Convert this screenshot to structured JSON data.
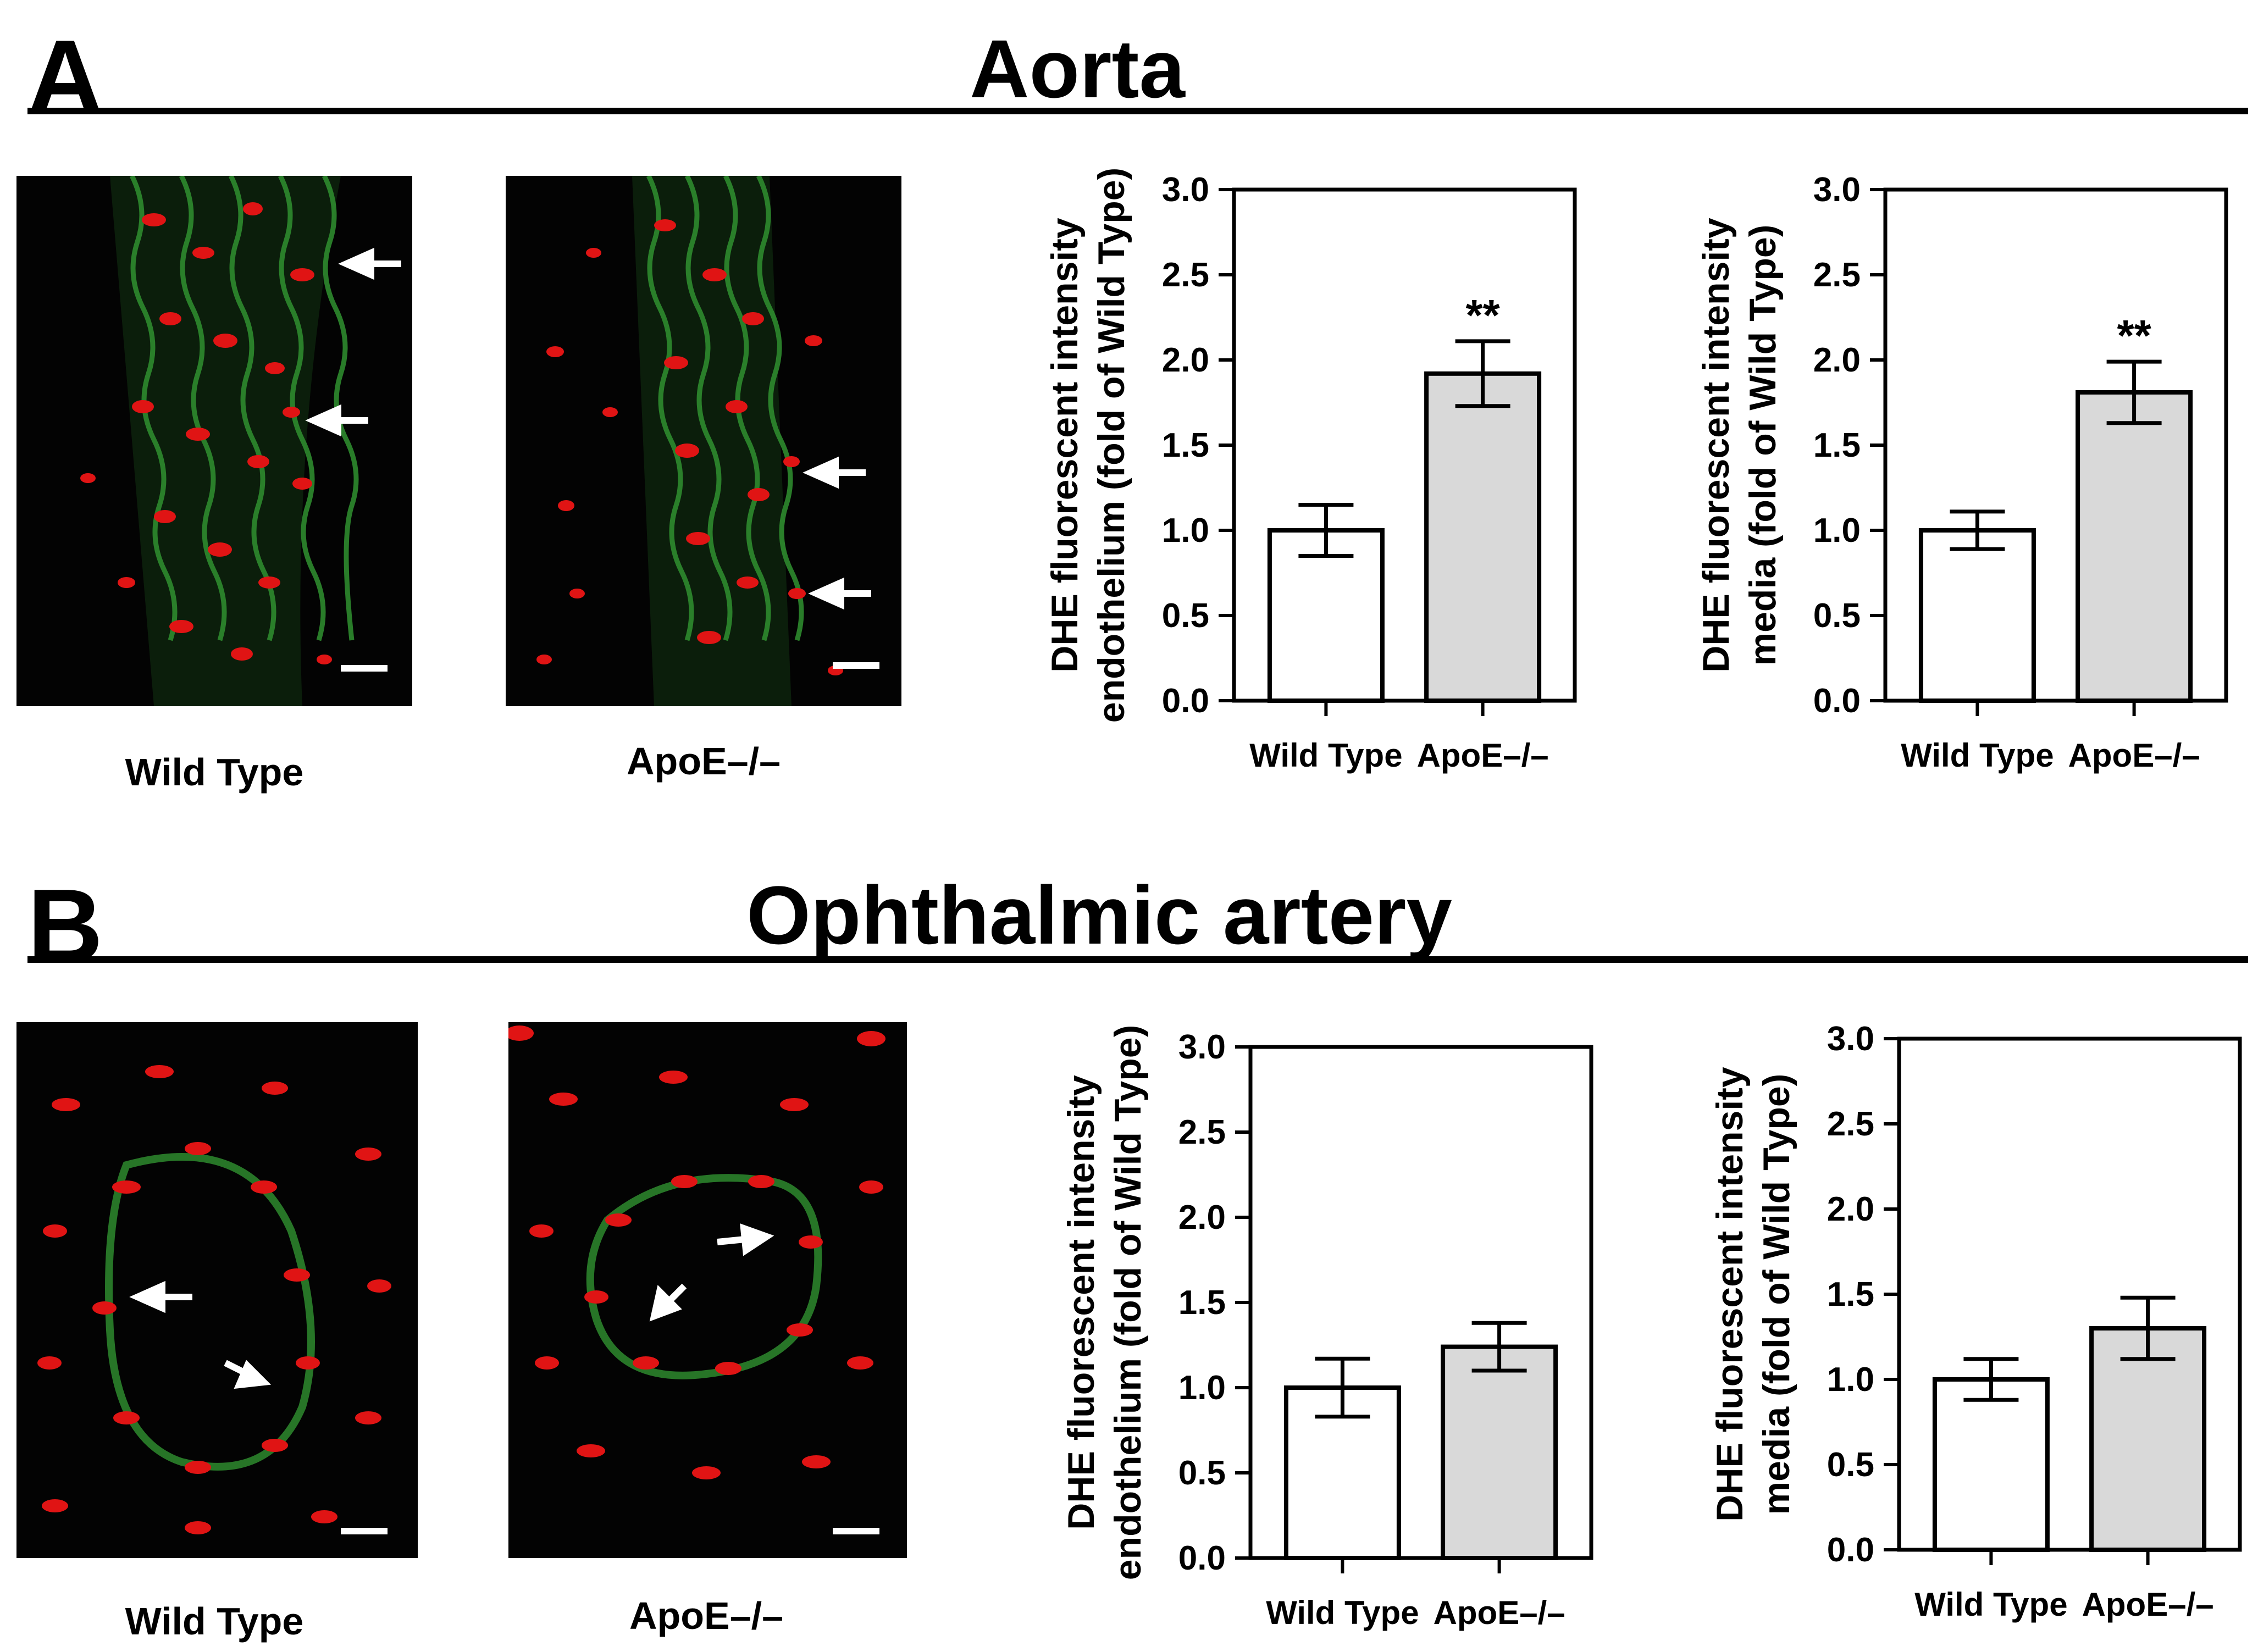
{
  "panels": [
    {
      "letter": "A",
      "title": "Aorta",
      "images": [
        {
          "label": "Wild Type"
        },
        {
          "label": "ApoE–/–"
        }
      ]
    },
    {
      "letter": "B",
      "title": "Ophthalmic artery",
      "images": [
        {
          "label": "Wild Type"
        },
        {
          "label": "ApoE–/–"
        }
      ]
    }
  ],
  "colors": {
    "wild_type_bar": "#ffffff",
    "apoe_bar": "#d9d9d9",
    "fluorescence_red": "#e01414",
    "fluorescence_green": "#2e8a2e"
  },
  "chart_data": [
    {
      "type": "bar",
      "panel": "A",
      "categories": [
        "Wild Type",
        "ApoE–/–"
      ],
      "values": [
        1.0,
        1.92
      ],
      "errors": [
        0.15,
        0.19
      ],
      "significance": [
        "",
        "**"
      ],
      "ylabel_lines": [
        "DHE fluorescent intensity",
        "endothelium (fold of Wild Type)"
      ],
      "ylim": [
        0,
        3.0
      ],
      "yticks": [
        "0.0",
        "0.5",
        "1.0",
        "1.5",
        "2.0",
        "2.5",
        "3.0"
      ]
    },
    {
      "type": "bar",
      "panel": "A",
      "categories": [
        "Wild Type",
        "ApoE–/–"
      ],
      "values": [
        1.0,
        1.81
      ],
      "errors": [
        0.11,
        0.18
      ],
      "significance": [
        "",
        "**"
      ],
      "ylabel_lines": [
        "DHE fluorescent intensity",
        "media (fold of Wild Type)"
      ],
      "ylim": [
        0,
        3.0
      ],
      "yticks": [
        "0.0",
        "0.5",
        "1.0",
        "1.5",
        "2.0",
        "2.5",
        "3.0"
      ]
    },
    {
      "type": "bar",
      "panel": "B",
      "categories": [
        "Wild Type",
        "ApoE–/–"
      ],
      "values": [
        1.0,
        1.24
      ],
      "errors": [
        0.17,
        0.14
      ],
      "significance": [
        "",
        ""
      ],
      "ylabel_lines": [
        "DHE fluorescent intensity",
        "endothelium (fold of Wild Type)"
      ],
      "ylim": [
        0,
        3.0
      ],
      "yticks": [
        "0.0",
        "0.5",
        "1.0",
        "1.5",
        "2.0",
        "2.5",
        "3.0"
      ]
    },
    {
      "type": "bar",
      "panel": "B",
      "categories": [
        "Wild Type",
        "ApoE–/–"
      ],
      "values": [
        1.0,
        1.3
      ],
      "errors": [
        0.12,
        0.18
      ],
      "significance": [
        "",
        ""
      ],
      "ylabel_lines": [
        "DHE fluorescent intensity",
        "media (fold of Wild Type)"
      ],
      "ylim": [
        0,
        3.0
      ],
      "yticks": [
        "0.0",
        "0.5",
        "1.0",
        "1.5",
        "2.0",
        "2.5",
        "3.0"
      ]
    }
  ]
}
